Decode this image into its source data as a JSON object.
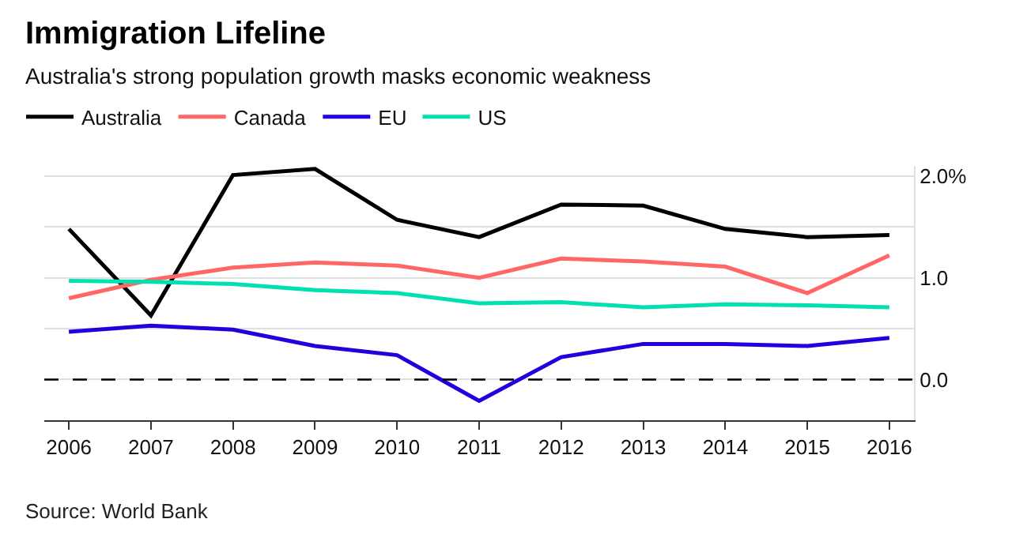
{
  "chart_data": {
    "type": "line",
    "title": "Immigration Lifeline",
    "subtitle": "Australia's strong population growth masks economic weakness",
    "categories": [
      "2006",
      "2007",
      "2008",
      "2009",
      "2010",
      "2011",
      "2012",
      "2013",
      "2014",
      "2015",
      "2016"
    ],
    "series": [
      {
        "name": "Australia",
        "color": "#000000",
        "values": [
          1.48,
          0.63,
          2.01,
          2.07,
          1.57,
          1.4,
          1.72,
          1.71,
          1.48,
          1.4,
          1.42
        ]
      },
      {
        "name": "Canada",
        "color": "#ff6666",
        "values": [
          0.8,
          0.98,
          1.1,
          1.15,
          1.12,
          1.0,
          1.19,
          1.16,
          1.11,
          0.85,
          1.22
        ]
      },
      {
        "name": "EU",
        "color": "#2200dd",
        "values": [
          0.47,
          0.53,
          0.49,
          0.33,
          0.24,
          -0.21,
          0.22,
          0.35,
          0.35,
          0.33,
          0.41
        ]
      },
      {
        "name": "US",
        "color": "#00e0b0",
        "values": [
          0.97,
          0.96,
          0.94,
          0.88,
          0.85,
          0.75,
          0.76,
          0.71,
          0.74,
          0.73,
          0.71
        ]
      }
    ],
    "ylim": [
      -0.4,
      2.1
    ],
    "yticks": [
      {
        "value": 0,
        "label": "0.0"
      },
      {
        "value": 0.5,
        "label": null
      },
      {
        "value": 1,
        "label": "1.0"
      },
      {
        "value": 1.5,
        "label": null
      },
      {
        "value": 2,
        "label": "2.0%"
      }
    ],
    "ref_lines": [
      {
        "axis": "y",
        "value": 0,
        "color": "#000000",
        "line_style": "dashed"
      }
    ],
    "grid": "y",
    "legend": "top left",
    "marker": "none",
    "line_style": "solid",
    "annotations": [
      "Source: World Bank"
    ]
  }
}
